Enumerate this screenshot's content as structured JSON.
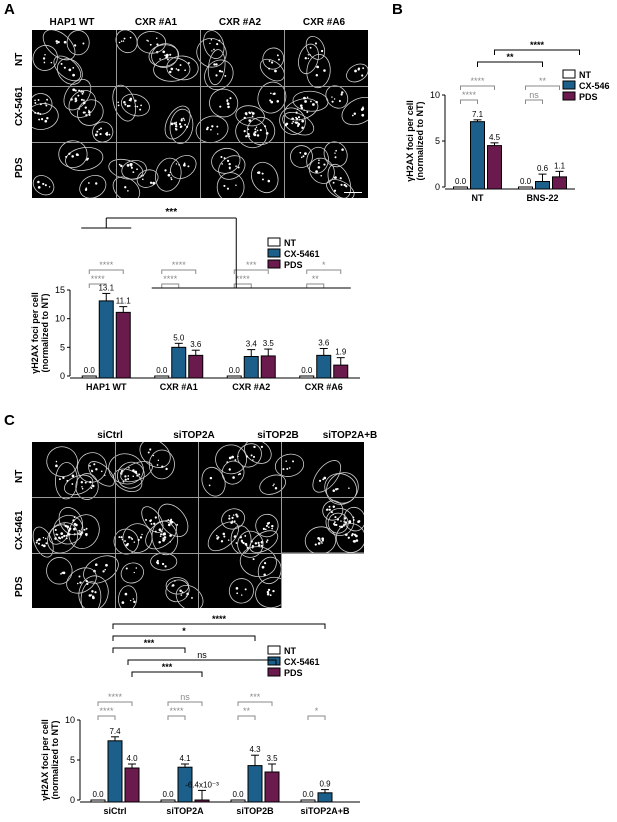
{
  "panels": {
    "A": "A",
    "B": "B",
    "C": "C"
  },
  "microscopy_A": {
    "columns": [
      "HAP1 WT",
      "CXR #A1",
      "CXR #A2",
      "CXR #A6"
    ],
    "rows": [
      "NT",
      "CX-5461",
      "PDS"
    ]
  },
  "microscopy_C": {
    "columns": [
      "siCtrl",
      "siTOP2A",
      "siTOP2B",
      "siTOP2A+B"
    ],
    "rows": [
      "NT",
      "CX-5461",
      "PDS"
    ]
  },
  "colors": {
    "NT": "#ffffff",
    "CX-5461": "#1b5f8a",
    "PDS": "#6b1a4e",
    "sig_black": "#000000",
    "sig_grey": "#8a8a8a"
  },
  "chart_data": [
    {
      "id": "A",
      "type": "bar",
      "ylabel": "γH2AX foci per cell (normalized to NT)",
      "ylim": [
        0,
        15
      ],
      "yticks": [
        "0",
        "5",
        "10",
        "15"
      ],
      "categories": [
        "HAP1 WT",
        "CXR #A1",
        "CXR #A2",
        "CXR #A6"
      ],
      "legend": [
        "NT",
        "CX-5461",
        "PDS"
      ],
      "series": [
        {
          "name": "NT",
          "values": [
            0.0,
            0.0,
            0.0,
            0.0
          ],
          "errors": [
            0,
            0,
            0,
            0
          ],
          "labels": [
            "0.0",
            "0.0",
            "0.0",
            "0.0"
          ]
        },
        {
          "name": "CX-5461",
          "values": [
            13.1,
            5.0,
            3.4,
            3.6
          ],
          "errors": [
            1.3,
            0.7,
            1.2,
            1.2
          ],
          "labels": [
            "13.1",
            "5.0",
            "3.4",
            "3.6"
          ]
        },
        {
          "name": "PDS",
          "values": [
            11.1,
            3.6,
            3.5,
            1.9
          ],
          "errors": [
            1.0,
            0.9,
            1.2,
            1.3
          ],
          "labels": [
            "11.1",
            "3.6",
            "3.5",
            "1.9"
          ]
        }
      ],
      "sig_within": [
        {
          "cat": 0,
          "from": 0,
          "to": 1,
          "text": "****"
        },
        {
          "cat": 0,
          "from": 0,
          "to": 2,
          "text": "****"
        },
        {
          "cat": 1,
          "from": 0,
          "to": 1,
          "text": "****"
        },
        {
          "cat": 1,
          "from": 0,
          "to": 2,
          "text": "****"
        },
        {
          "cat": 2,
          "from": 0,
          "to": 1,
          "text": "****"
        },
        {
          "cat": 2,
          "from": 0,
          "to": 2,
          "text": "***"
        },
        {
          "cat": 3,
          "from": 0,
          "to": 1,
          "text": "**"
        },
        {
          "cat": 3,
          "from": 0,
          "to": 2,
          "text": "*"
        }
      ],
      "sig_between": [
        {
          "text": "***"
        }
      ]
    },
    {
      "id": "B",
      "type": "bar",
      "ylabel": "γH2AX foci per cell (normalized to NT)",
      "ylim": [
        0,
        10
      ],
      "yticks": [
        "0",
        "5",
        "10"
      ],
      "categories": [
        "NT",
        "BNS-22"
      ],
      "legend": [
        "NT",
        "CX-5461",
        "PDS"
      ],
      "series": [
        {
          "name": "NT",
          "values": [
            0.0,
            0.0
          ],
          "errors": [
            0,
            0
          ],
          "labels": [
            "0.0",
            "0.0"
          ]
        },
        {
          "name": "CX-5461",
          "values": [
            7.1,
            0.6
          ],
          "errors": [
            0.2,
            0.8
          ],
          "labels": [
            "7.1",
            "0.6"
          ]
        },
        {
          "name": "PDS",
          "values": [
            4.5,
            1.1
          ],
          "errors": [
            0.3,
            0.6
          ],
          "labels": [
            "4.5",
            "1.1"
          ]
        }
      ],
      "sig_within": [
        {
          "cat": 0,
          "from": 0,
          "to": 1,
          "text": "****"
        },
        {
          "cat": 0,
          "from": 0,
          "to": 2,
          "text": "****"
        },
        {
          "cat": 1,
          "from": 0,
          "to": 1,
          "text": "ns"
        },
        {
          "cat": 1,
          "from": 0,
          "to": 2,
          "text": "**"
        }
      ],
      "sig_between": [
        {
          "text": "**"
        },
        {
          "text": "****"
        }
      ]
    },
    {
      "id": "C",
      "type": "bar",
      "ylabel": "γH2AX foci per cell (normalized to NT)",
      "ylim": [
        0,
        10
      ],
      "yticks": [
        "0",
        "5",
        "10"
      ],
      "categories": [
        "siCtrl",
        "siTOP2A",
        "siTOP2B",
        "siTOP2A+B"
      ],
      "legend": [
        "NT",
        "CX-5461",
        "PDS"
      ],
      "series": [
        {
          "name": "NT",
          "values": [
            0.0,
            0.0,
            0.0,
            0.0
          ],
          "errors": [
            0,
            0,
            0,
            0
          ],
          "labels": [
            "0.0",
            "0.0",
            "0.0",
            "0.0"
          ]
        },
        {
          "name": "CX-5461",
          "values": [
            7.4,
            4.1,
            4.3,
            0.9
          ],
          "errors": [
            0.5,
            0.4,
            1.3,
            0.4
          ],
          "labels": [
            "7.4",
            "4.1",
            "4.3",
            "0.9"
          ]
        },
        {
          "name": "PDS",
          "values": [
            4.0,
            -0.0064,
            3.5,
            null
          ],
          "errors": [
            0.5,
            1.2,
            1.0,
            0
          ],
          "labels": [
            "4.0",
            "-6.4x10⁻³",
            "3.5",
            ""
          ]
        }
      ],
      "sig_within": [
        {
          "cat": 0,
          "from": 0,
          "to": 1,
          "text": "****"
        },
        {
          "cat": 0,
          "from": 0,
          "to": 2,
          "text": "****"
        },
        {
          "cat": 1,
          "from": 0,
          "to": 1,
          "text": "****"
        },
        {
          "cat": 1,
          "from": 0,
          "to": 2,
          "text": "ns"
        },
        {
          "cat": 2,
          "from": 0,
          "to": 1,
          "text": "**"
        },
        {
          "cat": 2,
          "from": 0,
          "to": 2,
          "text": "***"
        },
        {
          "cat": 3,
          "from": 0,
          "to": 1,
          "text": "*"
        }
      ],
      "sig_between": [
        {
          "text": "****"
        },
        {
          "text": "*"
        },
        {
          "text": "***"
        },
        {
          "text": "ns"
        },
        {
          "text": "***"
        }
      ]
    }
  ]
}
